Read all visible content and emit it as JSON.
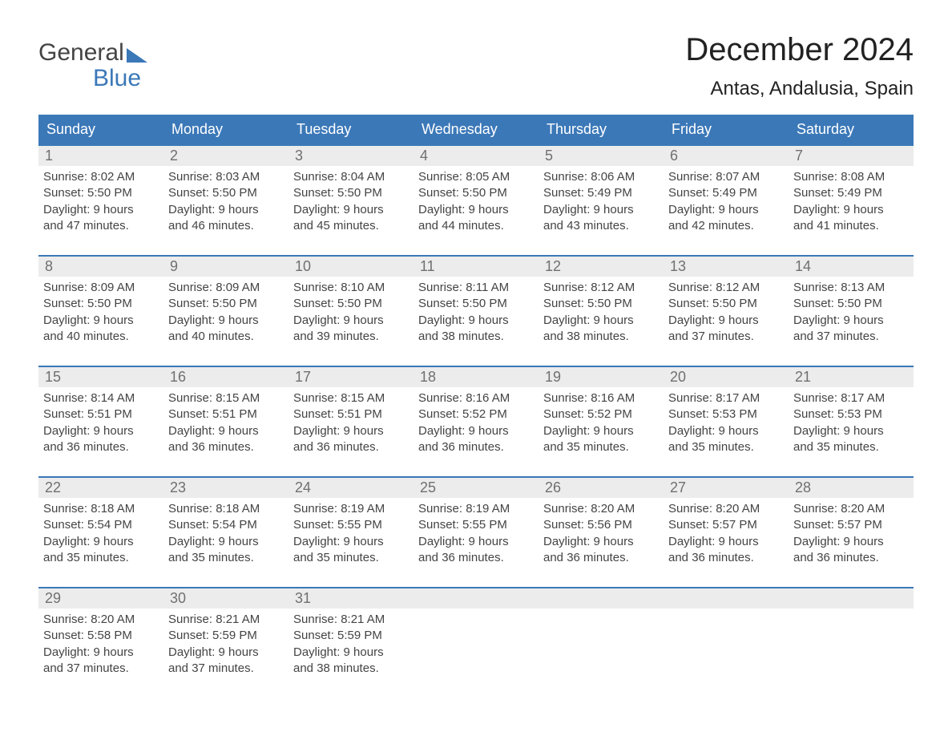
{
  "logo": {
    "line1": "General",
    "line2": "Blue"
  },
  "title": "December 2024",
  "location": "Antas, Andalusia, Spain",
  "colors": {
    "header_bg": "#3b78b8",
    "header_text": "#ffffff",
    "daynum_bg": "#ececec",
    "daynum_text": "#707070",
    "body_text": "#444444",
    "week_border": "#3b78b8"
  },
  "day_headers": [
    "Sunday",
    "Monday",
    "Tuesday",
    "Wednesday",
    "Thursday",
    "Friday",
    "Saturday"
  ],
  "labels": {
    "sunrise": "Sunrise:",
    "sunset": "Sunset:",
    "daylight": "Daylight:"
  },
  "weeks": [
    [
      {
        "n": "1",
        "sunrise": "8:02 AM",
        "sunset": "5:50 PM",
        "dl1": "9 hours",
        "dl2": "and 47 minutes."
      },
      {
        "n": "2",
        "sunrise": "8:03 AM",
        "sunset": "5:50 PM",
        "dl1": "9 hours",
        "dl2": "and 46 minutes."
      },
      {
        "n": "3",
        "sunrise": "8:04 AM",
        "sunset": "5:50 PM",
        "dl1": "9 hours",
        "dl2": "and 45 minutes."
      },
      {
        "n": "4",
        "sunrise": "8:05 AM",
        "sunset": "5:50 PM",
        "dl1": "9 hours",
        "dl2": "and 44 minutes."
      },
      {
        "n": "5",
        "sunrise": "8:06 AM",
        "sunset": "5:49 PM",
        "dl1": "9 hours",
        "dl2": "and 43 minutes."
      },
      {
        "n": "6",
        "sunrise": "8:07 AM",
        "sunset": "5:49 PM",
        "dl1": "9 hours",
        "dl2": "and 42 minutes."
      },
      {
        "n": "7",
        "sunrise": "8:08 AM",
        "sunset": "5:49 PM",
        "dl1": "9 hours",
        "dl2": "and 41 minutes."
      }
    ],
    [
      {
        "n": "8",
        "sunrise": "8:09 AM",
        "sunset": "5:50 PM",
        "dl1": "9 hours",
        "dl2": "and 40 minutes."
      },
      {
        "n": "9",
        "sunrise": "8:09 AM",
        "sunset": "5:50 PM",
        "dl1": "9 hours",
        "dl2": "and 40 minutes."
      },
      {
        "n": "10",
        "sunrise": "8:10 AM",
        "sunset": "5:50 PM",
        "dl1": "9 hours",
        "dl2": "and 39 minutes."
      },
      {
        "n": "11",
        "sunrise": "8:11 AM",
        "sunset": "5:50 PM",
        "dl1": "9 hours",
        "dl2": "and 38 minutes."
      },
      {
        "n": "12",
        "sunrise": "8:12 AM",
        "sunset": "5:50 PM",
        "dl1": "9 hours",
        "dl2": "and 38 minutes."
      },
      {
        "n": "13",
        "sunrise": "8:12 AM",
        "sunset": "5:50 PM",
        "dl1": "9 hours",
        "dl2": "and 37 minutes."
      },
      {
        "n": "14",
        "sunrise": "8:13 AM",
        "sunset": "5:50 PM",
        "dl1": "9 hours",
        "dl2": "and 37 minutes."
      }
    ],
    [
      {
        "n": "15",
        "sunrise": "8:14 AM",
        "sunset": "5:51 PM",
        "dl1": "9 hours",
        "dl2": "and 36 minutes."
      },
      {
        "n": "16",
        "sunrise": "8:15 AM",
        "sunset": "5:51 PM",
        "dl1": "9 hours",
        "dl2": "and 36 minutes."
      },
      {
        "n": "17",
        "sunrise": "8:15 AM",
        "sunset": "5:51 PM",
        "dl1": "9 hours",
        "dl2": "and 36 minutes."
      },
      {
        "n": "18",
        "sunrise": "8:16 AM",
        "sunset": "5:52 PM",
        "dl1": "9 hours",
        "dl2": "and 36 minutes."
      },
      {
        "n": "19",
        "sunrise": "8:16 AM",
        "sunset": "5:52 PM",
        "dl1": "9 hours",
        "dl2": "and 35 minutes."
      },
      {
        "n": "20",
        "sunrise": "8:17 AM",
        "sunset": "5:53 PM",
        "dl1": "9 hours",
        "dl2": "and 35 minutes."
      },
      {
        "n": "21",
        "sunrise": "8:17 AM",
        "sunset": "5:53 PM",
        "dl1": "9 hours",
        "dl2": "and 35 minutes."
      }
    ],
    [
      {
        "n": "22",
        "sunrise": "8:18 AM",
        "sunset": "5:54 PM",
        "dl1": "9 hours",
        "dl2": "and 35 minutes."
      },
      {
        "n": "23",
        "sunrise": "8:18 AM",
        "sunset": "5:54 PM",
        "dl1": "9 hours",
        "dl2": "and 35 minutes."
      },
      {
        "n": "24",
        "sunrise": "8:19 AM",
        "sunset": "5:55 PM",
        "dl1": "9 hours",
        "dl2": "and 35 minutes."
      },
      {
        "n": "25",
        "sunrise": "8:19 AM",
        "sunset": "5:55 PM",
        "dl1": "9 hours",
        "dl2": "and 36 minutes."
      },
      {
        "n": "26",
        "sunrise": "8:20 AM",
        "sunset": "5:56 PM",
        "dl1": "9 hours",
        "dl2": "and 36 minutes."
      },
      {
        "n": "27",
        "sunrise": "8:20 AM",
        "sunset": "5:57 PM",
        "dl1": "9 hours",
        "dl2": "and 36 minutes."
      },
      {
        "n": "28",
        "sunrise": "8:20 AM",
        "sunset": "5:57 PM",
        "dl1": "9 hours",
        "dl2": "and 36 minutes."
      }
    ],
    [
      {
        "n": "29",
        "sunrise": "8:20 AM",
        "sunset": "5:58 PM",
        "dl1": "9 hours",
        "dl2": "and 37 minutes."
      },
      {
        "n": "30",
        "sunrise": "8:21 AM",
        "sunset": "5:59 PM",
        "dl1": "9 hours",
        "dl2": "and 37 minutes."
      },
      {
        "n": "31",
        "sunrise": "8:21 AM",
        "sunset": "5:59 PM",
        "dl1": "9 hours",
        "dl2": "and 38 minutes."
      },
      null,
      null,
      null,
      null
    ]
  ]
}
